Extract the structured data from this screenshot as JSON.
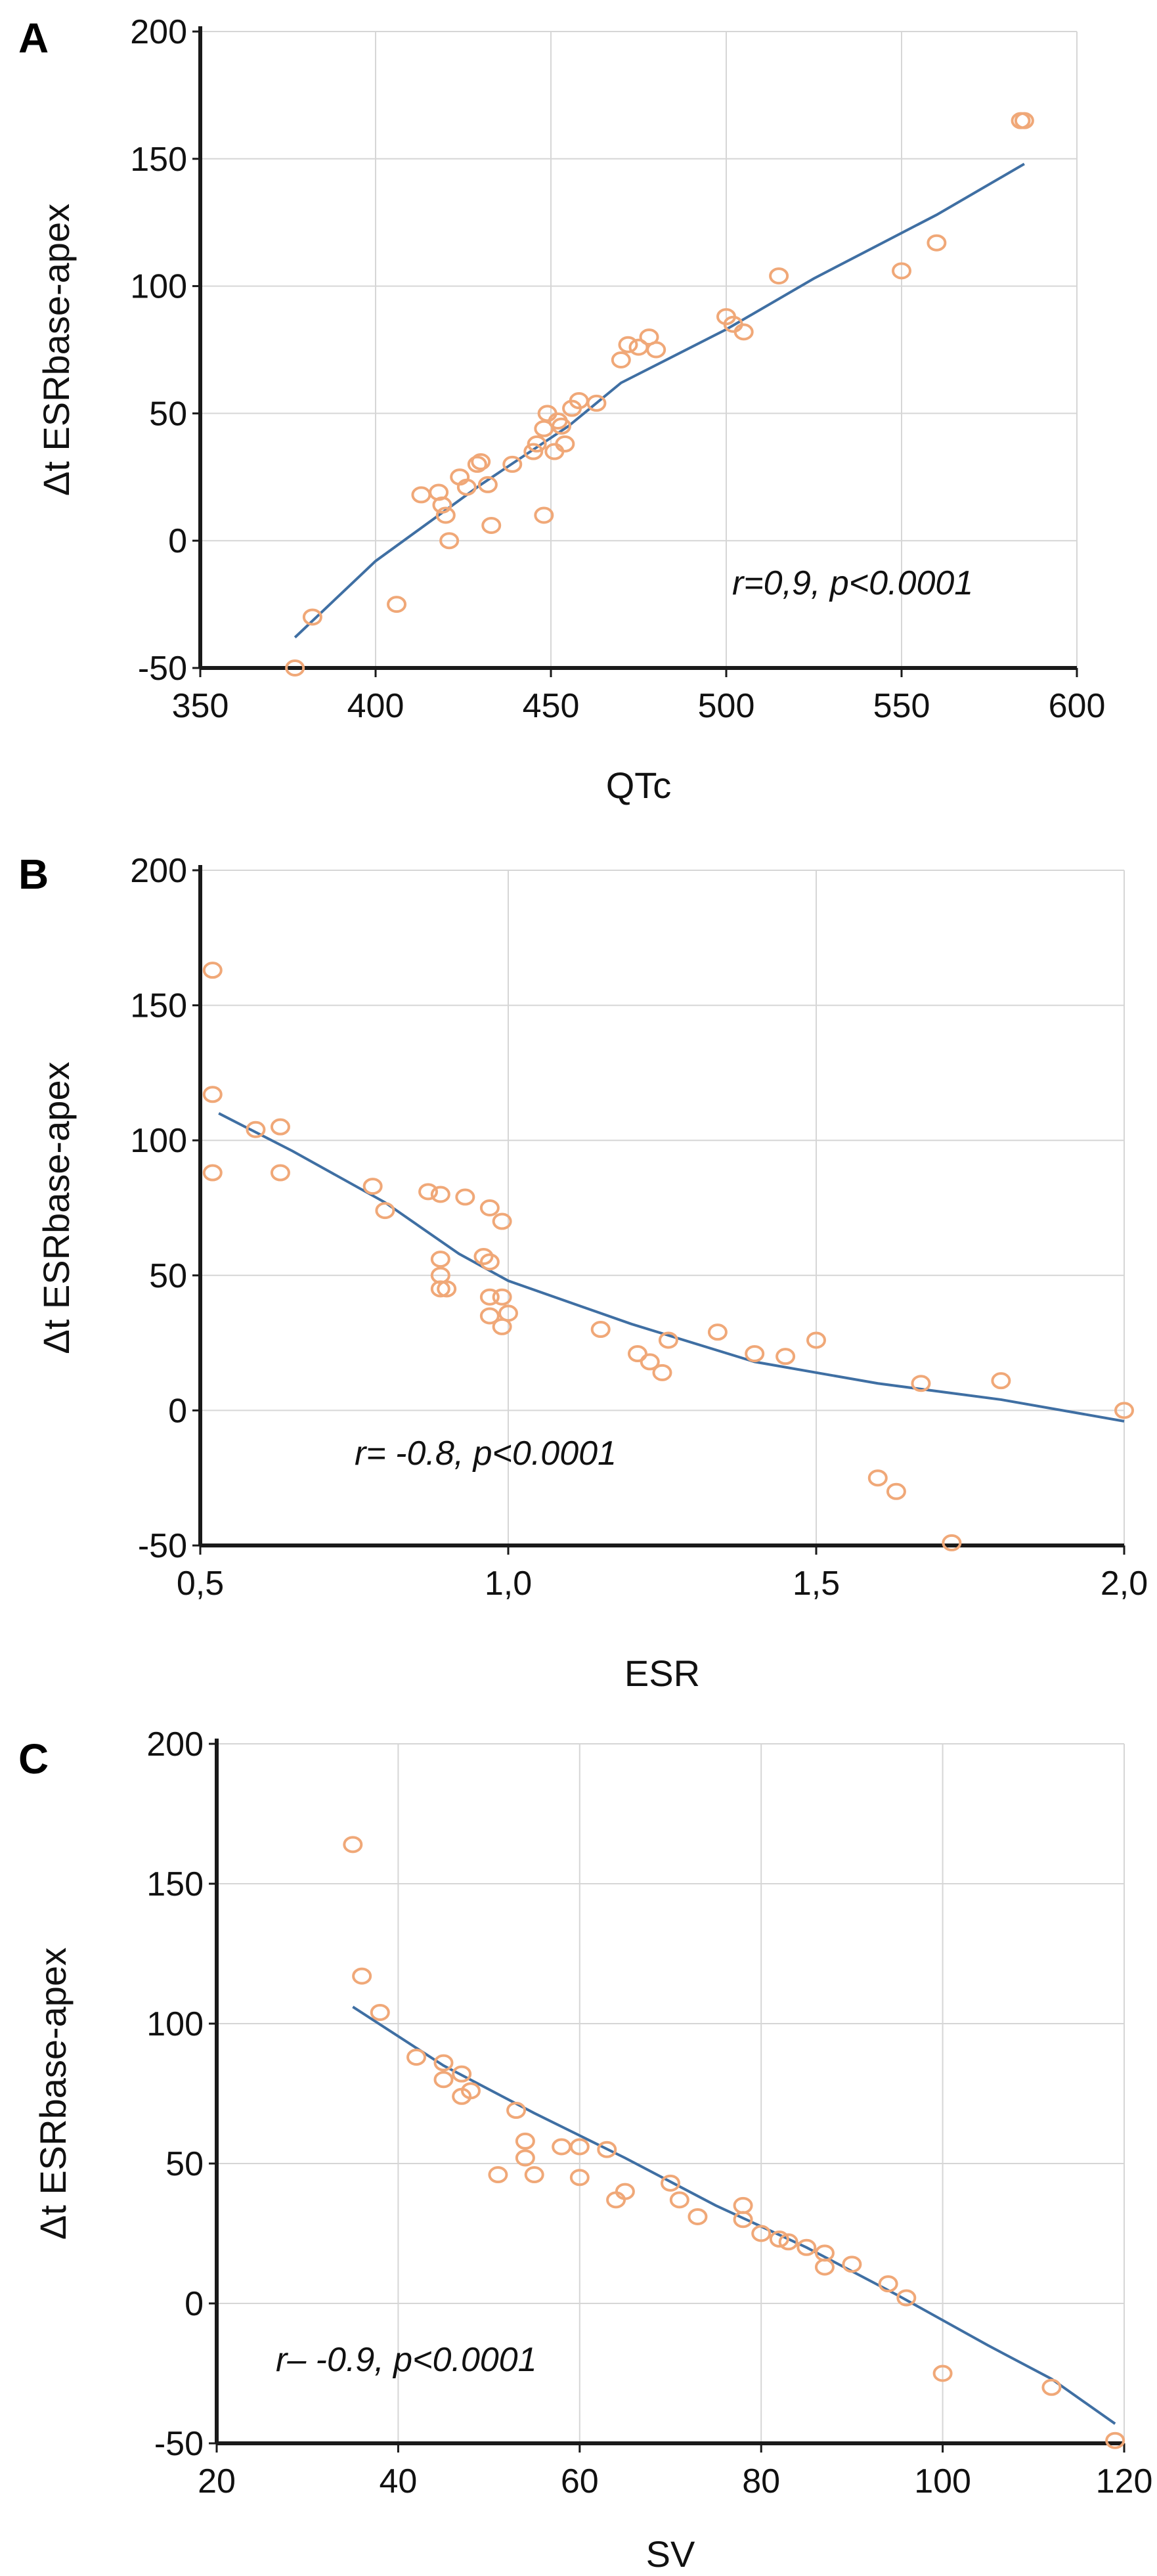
{
  "chart_data": [
    {
      "type": "scatter",
      "panel": "A",
      "xlabel": "QTc",
      "ylabel": "Δt ESRbase-apex",
      "xlim": [
        350,
        600
      ],
      "ylim": [
        -50,
        200
      ],
      "xticks": [
        350,
        400,
        450,
        500,
        550,
        600
      ],
      "yticks": [
        -50,
        0,
        50,
        100,
        150,
        200
      ],
      "xtick_labels": [
        "350",
        "400",
        "450",
        "500",
        "550",
        "600"
      ],
      "ytick_labels": [
        "-50",
        "0",
        "50",
        "100",
        "150",
        "200"
      ],
      "annotation": "r=0,9, p<0.0001",
      "points": [
        [
          377,
          -50
        ],
        [
          382,
          -30
        ],
        [
          406,
          -25
        ],
        [
          413,
          18
        ],
        [
          418,
          19
        ],
        [
          419,
          14
        ],
        [
          420,
          10
        ],
        [
          421,
          0
        ],
        [
          424,
          25
        ],
        [
          426,
          21
        ],
        [
          429,
          30
        ],
        [
          430,
          31
        ],
        [
          432,
          22
        ],
        [
          433,
          6
        ],
        [
          439,
          30
        ],
        [
          445,
          35
        ],
        [
          446,
          38
        ],
        [
          448,
          10
        ],
        [
          448,
          44
        ],
        [
          449,
          50
        ],
        [
          451,
          35
        ],
        [
          452,
          47
        ],
        [
          453,
          45
        ],
        [
          454,
          38
        ],
        [
          456,
          52
        ],
        [
          458,
          55
        ],
        [
          463,
          54
        ],
        [
          470,
          71
        ],
        [
          472,
          77
        ],
        [
          475,
          76
        ],
        [
          478,
          80
        ],
        [
          480,
          75
        ],
        [
          500,
          88
        ],
        [
          502,
          85
        ],
        [
          505,
          82
        ],
        [
          515,
          104
        ],
        [
          550,
          106
        ],
        [
          560,
          117
        ],
        [
          584,
          165
        ],
        [
          585,
          165
        ]
      ],
      "fit": [
        [
          377,
          -38
        ],
        [
          400,
          -8
        ],
        [
          430,
          22
        ],
        [
          455,
          45
        ],
        [
          470,
          62
        ],
        [
          500,
          83
        ],
        [
          525,
          103
        ],
        [
          560,
          128
        ],
        [
          585,
          148
        ]
      ]
    },
    {
      "type": "scatter",
      "panel": "B",
      "xlabel": "ESR",
      "ylabel": "Δt ESRbase-apex",
      "xlim": [
        0.5,
        2.0
      ],
      "ylim": [
        -50,
        200
      ],
      "xticks": [
        0.5,
        1.0,
        1.5,
        2.0
      ],
      "yticks": [
        -50,
        0,
        50,
        100,
        150,
        200
      ],
      "xtick_labels": [
        "0,5",
        "1,0",
        "1,5",
        "2,0"
      ],
      "ytick_labels": [
        "-50",
        "0",
        "50",
        "100",
        "150",
        "200"
      ],
      "annotation": "r= -0.8, p<0.0001",
      "points": [
        [
          0.52,
          163
        ],
        [
          0.52,
          117
        ],
        [
          0.52,
          88
        ],
        [
          0.59,
          104
        ],
        [
          0.63,
          105
        ],
        [
          0.63,
          88
        ],
        [
          0.78,
          83
        ],
        [
          0.8,
          74
        ],
        [
          0.87,
          81
        ],
        [
          0.89,
          80
        ],
        [
          0.89,
          56
        ],
        [
          0.89,
          50
        ],
        [
          0.89,
          45
        ],
        [
          0.9,
          45
        ],
        [
          0.93,
          79
        ],
        [
          0.96,
          57
        ],
        [
          0.97,
          75
        ],
        [
          0.97,
          55
        ],
        [
          0.97,
          42
        ],
        [
          0.97,
          35
        ],
        [
          0.99,
          70
        ],
        [
          0.99,
          42
        ],
        [
          0.99,
          31
        ],
        [
          1.0,
          36
        ],
        [
          1.15,
          30
        ],
        [
          1.21,
          21
        ],
        [
          1.23,
          18
        ],
        [
          1.25,
          14
        ],
        [
          1.26,
          26
        ],
        [
          1.34,
          29
        ],
        [
          1.4,
          21
        ],
        [
          1.45,
          20
        ],
        [
          1.5,
          26
        ],
        [
          1.6,
          -25
        ],
        [
          1.63,
          -30
        ],
        [
          1.67,
          10
        ],
        [
          1.72,
          -49
        ],
        [
          1.8,
          11
        ],
        [
          2.0,
          0
        ]
      ],
      "fit": [
        [
          0.53,
          110
        ],
        [
          0.65,
          96
        ],
        [
          0.8,
          77
        ],
        [
          0.92,
          58
        ],
        [
          1.0,
          48
        ],
        [
          1.2,
          32
        ],
        [
          1.4,
          18
        ],
        [
          1.6,
          10
        ],
        [
          1.8,
          4
        ],
        [
          2.0,
          -4
        ]
      ]
    },
    {
      "type": "scatter",
      "panel": "C",
      "xlabel": "SV",
      "ylabel": "Δt ESRbase-apex",
      "xlim": [
        20,
        120
      ],
      "ylim": [
        -50,
        200
      ],
      "xticks": [
        20,
        40,
        60,
        80,
        100,
        120
      ],
      "yticks": [
        -50,
        0,
        50,
        100,
        150,
        200
      ],
      "xtick_labels": [
        "20",
        "40",
        "60",
        "80",
        "100",
        "120"
      ],
      "ytick_labels": [
        "-50",
        "0",
        "50",
        "100",
        "150",
        "200"
      ],
      "annotation": "r– -0.9, p<0.0001",
      "points": [
        [
          35,
          164
        ],
        [
          36,
          117
        ],
        [
          38,
          104
        ],
        [
          42,
          88
        ],
        [
          45,
          86
        ],
        [
          45,
          80
        ],
        [
          47,
          82
        ],
        [
          47,
          74
        ],
        [
          48,
          76
        ],
        [
          51,
          46
        ],
        [
          53,
          69
        ],
        [
          54,
          58
        ],
        [
          54,
          52
        ],
        [
          55,
          46
        ],
        [
          58,
          56
        ],
        [
          60,
          56
        ],
        [
          60,
          45
        ],
        [
          63,
          55
        ],
        [
          64,
          37
        ],
        [
          65,
          40
        ],
        [
          70,
          43
        ],
        [
          71,
          37
        ],
        [
          73,
          31
        ],
        [
          78,
          35
        ],
        [
          78,
          30
        ],
        [
          80,
          25
        ],
        [
          82,
          23
        ],
        [
          83,
          22
        ],
        [
          85,
          20
        ],
        [
          87,
          18
        ],
        [
          87,
          13
        ],
        [
          90,
          14
        ],
        [
          94,
          7
        ],
        [
          96,
          2
        ],
        [
          100,
          -25
        ],
        [
          112,
          -30
        ],
        [
          119,
          -49
        ]
      ],
      "fit": [
        [
          35,
          106
        ],
        [
          45,
          85
        ],
        [
          55,
          68
        ],
        [
          65,
          52
        ],
        [
          75,
          35
        ],
        [
          85,
          20
        ],
        [
          95,
          3
        ],
        [
          105,
          -15
        ],
        [
          112,
          -27
        ],
        [
          119,
          -43
        ]
      ]
    }
  ]
}
